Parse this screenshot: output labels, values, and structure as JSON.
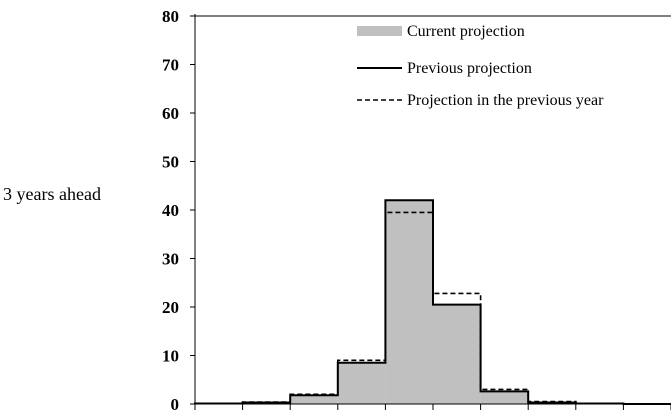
{
  "chart_data": {
    "type": "bar",
    "title": "",
    "xlabel": "",
    "ylabel": "3 years ahead",
    "ylim": [
      0,
      80
    ],
    "yticks": [
      0,
      10,
      20,
      30,
      40,
      50,
      60,
      70,
      80
    ],
    "bins": 10,
    "grid": false,
    "legend_position": "top-right",
    "series": [
      {
        "name": "Current projection",
        "style": "filled-bar",
        "color": "#c0c0c0",
        "values": [
          0.1,
          0.3,
          1.8,
          8.5,
          42.0,
          20.5,
          2.6,
          0.3,
          0.1,
          0.0
        ]
      },
      {
        "name": "Previous projection",
        "style": "solid-step",
        "color": "#000000",
        "values": [
          0.1,
          0.3,
          1.8,
          8.5,
          42.0,
          20.5,
          2.6,
          0.3,
          0.1,
          0.0
        ]
      },
      {
        "name": "Projection in the previous year",
        "style": "dashed-step",
        "color": "#000000",
        "values": [
          0.1,
          0.4,
          2.0,
          9.0,
          39.5,
          22.8,
          3.0,
          0.5,
          0.1,
          0.0
        ]
      }
    ]
  }
}
